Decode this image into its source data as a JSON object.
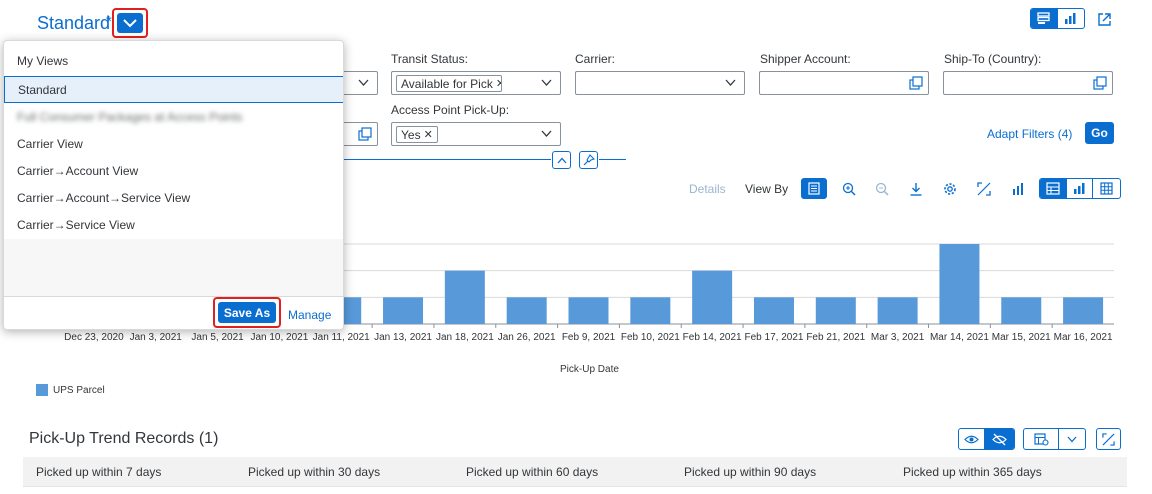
{
  "header": {
    "variant_title": "Standard",
    "variant_modified_marker": "*",
    "colors": {
      "accent": "#0a6ed1",
      "highlight": "#e02020"
    }
  },
  "variant_popover": {
    "title": "My Views",
    "items": [
      {
        "label": "Standard",
        "selected": true
      },
      {
        "label": "Full Consumer Packages at Access Points",
        "blurred": true
      },
      {
        "label": "Carrier View"
      },
      {
        "label": "Carrier→Account View"
      },
      {
        "label": "Carrier→Account→Service View"
      },
      {
        "label": "Carrier→Service View"
      }
    ],
    "save_as_label": "Save As",
    "manage_label": "Manage"
  },
  "filters": {
    "transit_status": {
      "label": "Transit Status:",
      "token": "Available for Pick"
    },
    "carrier": {
      "label": "Carrier:",
      "value": ""
    },
    "shipper_account": {
      "label": "Shipper Account:",
      "value": ""
    },
    "ship_to_country": {
      "label": "Ship-To (Country):",
      "value": ""
    },
    "access_point_pickup": {
      "label": "Access Point Pick-Up:",
      "token": "Yes"
    },
    "adapt_filters_label": "Adapt Filters (4)",
    "go_label": "Go"
  },
  "chart_toolbar": {
    "details_label": "Details",
    "view_by_label": "View By"
  },
  "chart_data": {
    "type": "bar",
    "categories": [
      "Dec 23, 2020",
      "Jan 3, 2021",
      "Jan 5, 2021",
      "Jan 10, 2021",
      "Jan 11, 2021",
      "Jan 13, 2021",
      "Jan 18, 2021",
      "Jan 26, 2021",
      "Feb 9, 2021",
      "Feb 10, 2021",
      "Feb 14, 2021",
      "Feb 17, 2021",
      "Feb 21, 2021",
      "Mar 3, 2021",
      "Mar 14, 2021",
      "Mar 15, 2021",
      "Mar 16, 2021"
    ],
    "series": [
      {
        "name": "UPS Parcel",
        "values": [
          1,
          1,
          1,
          1,
          1,
          1,
          2,
          1,
          1,
          1,
          2,
          1,
          1,
          1,
          3,
          1,
          1
        ]
      }
    ],
    "xlabel": "Pick-Up Date",
    "ylabel": "",
    "ylim": [
      0,
      3
    ],
    "grid": true,
    "legend": "bottom-left",
    "color": "#5899da"
  },
  "records": {
    "title": "Pick-Up Trend Records (1)",
    "columns": [
      "Picked up within 7 days",
      "Picked up within 30 days",
      "Picked up within 60 days",
      "Picked up within 90 days",
      "Picked up within 365 days"
    ]
  }
}
